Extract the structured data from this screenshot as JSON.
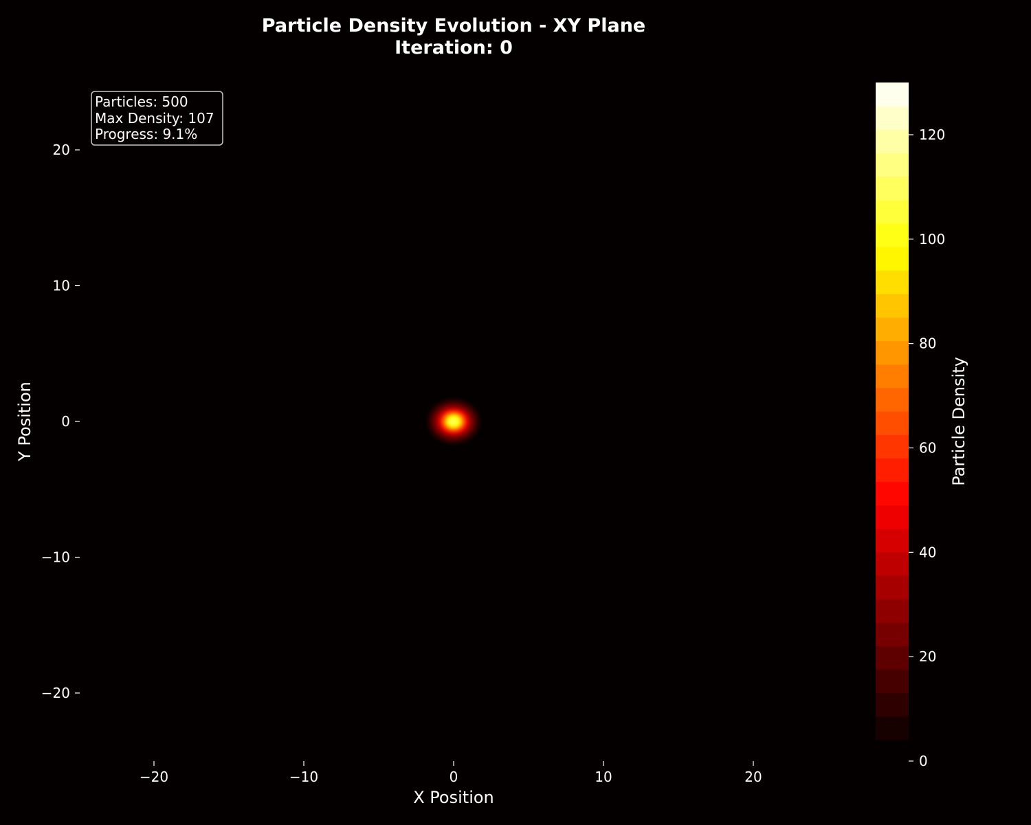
{
  "chart_data": {
    "type": "heatmap",
    "title": "Particle Density Evolution - XY Plane",
    "subtitle": "Iteration: 0",
    "xlabel": "X Position",
    "ylabel": "Y Position",
    "xlim": [
      -25,
      25
    ],
    "ylim": [
      -25,
      25
    ],
    "xticks": [
      -20,
      -10,
      0,
      10,
      20
    ],
    "yticks": [
      -20,
      -10,
      0,
      10,
      20
    ],
    "xtick_labels": [
      "−20",
      "−10",
      "0",
      "10",
      "20"
    ],
    "ytick_labels": [
      "−20",
      "−10",
      "0",
      "10",
      "20"
    ],
    "grid": false,
    "colormap": "hot",
    "colorbar": {
      "label": "Particle Density",
      "range": [
        0,
        130
      ],
      "ticks": [
        0,
        20,
        40,
        60,
        80,
        100,
        120
      ],
      "tick_labels": [
        "0",
        "20",
        "40",
        "60",
        "80",
        "100",
        "120"
      ],
      "levels": 28
    },
    "density_peak": {
      "x": 0,
      "y": 0,
      "max_density": 107,
      "contours": [
        {
          "level": 4,
          "rx": 1.8,
          "ry": 1.7
        },
        {
          "level": 10,
          "rx": 1.6,
          "ry": 1.5
        },
        {
          "level": 20,
          "rx": 1.4,
          "ry": 1.3
        },
        {
          "level": 35,
          "rx": 1.15,
          "ry": 1.05
        },
        {
          "level": 55,
          "rx": 0.9,
          "ry": 0.85
        },
        {
          "level": 75,
          "rx": 0.7,
          "ry": 0.65
        },
        {
          "level": 95,
          "rx": 0.5,
          "ry": 0.47
        },
        {
          "level": 107,
          "rx": 0.3,
          "ry": 0.28
        }
      ]
    },
    "info_box": {
      "particles_line": "Particles: 500",
      "max_density_line": "Max Density: 107",
      "progress_line": "Progress: 9.1%"
    },
    "colors": {
      "background": "#050000",
      "text": "#ffffff"
    }
  }
}
